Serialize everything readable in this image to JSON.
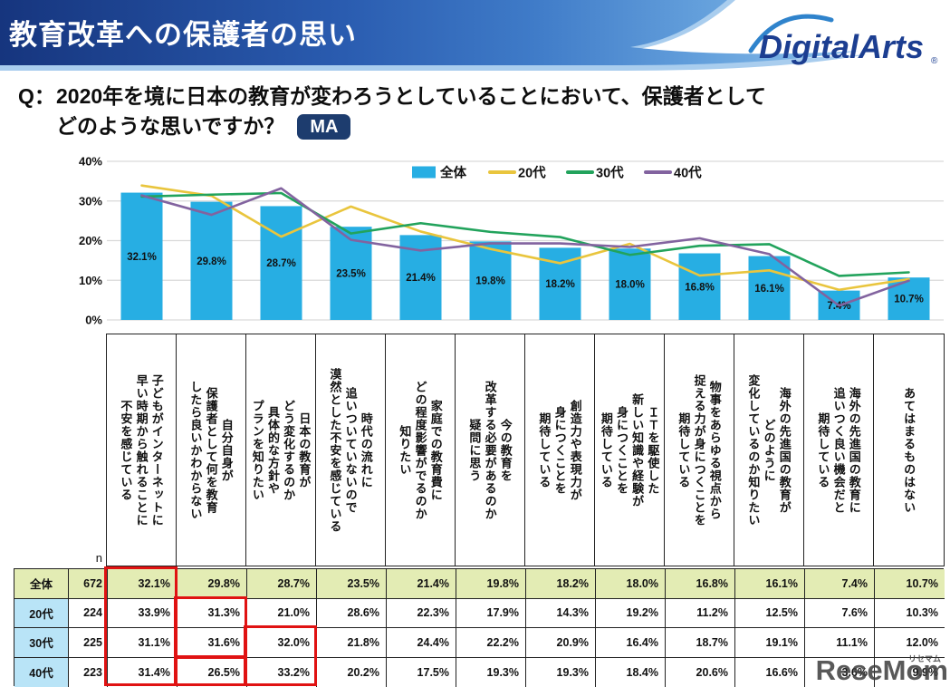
{
  "banner": {
    "title": "教育改革への保護者の思い",
    "logo_text": "DigitalArts",
    "logo_reg": "®"
  },
  "question": {
    "prefix": "Q：",
    "line1": "2020年を境に日本の教育が変わろうとしていることにおいて、保護者として",
    "line2": "どのような思いですか？",
    "badge": "MA"
  },
  "chart_data": {
    "type": "bar+line combo",
    "title": "",
    "xlabel": "",
    "ylabel": "",
    "ylim": [
      0,
      40
    ],
    "yticks": [
      "0%",
      "10%",
      "20%",
      "30%",
      "40%"
    ],
    "grid": true,
    "legend_position": "top",
    "colors": {
      "bar": "#27aee3",
      "line20": "#e9c53d",
      "line30": "#22a35c",
      "line40": "#82639f",
      "gridline": "#d9d9d9"
    },
    "categories": [
      "子どもがインターネットに早い時期から触れることに不安を感じている",
      "自分自身が保護者として何を教育したら良いかわからない",
      "日本の教育がどう変化するのか具体的な方針やプランを知りたい",
      "時代の流れに追いついていないので漠然とした不安を感じている",
      "家庭での教育費にどの程度影響がでるのか知りたい",
      "今の教育を改革する必要があるのか疑問に思う",
      "創造力や表現力が身につくことを期待している",
      "ＩＴを駆使した新しい知識や経験が身につくことを期待している",
      "物事をあらゆる視点から捉える力が身につくことを期待している",
      "海外の先進国の教育がどのように変化しているのか知りたい",
      "海外の先進国の教育に追いつく良い機会だと期待している",
      "あてはまるものはない"
    ],
    "category_lines": [
      [
        "子どもがインターネットに",
        "早い時期から触れることに",
        "不安を感じている"
      ],
      [
        "自分自身が",
        "保護者として何を教育",
        "したら良いかわからない"
      ],
      [
        "日本の教育が",
        "どう変化するのか",
        "具体的な方針や",
        "プランを知りたい"
      ],
      [
        "時代の流れに",
        "追いついていないので",
        "漠然とした不安を感じている"
      ],
      [
        "家庭での教育費に",
        "どの程度影響がでるのか",
        "知りたい"
      ],
      [
        "今の教育を",
        "改革する必要があるのか",
        "疑問に思う"
      ],
      [
        "創造力や表現力が",
        "身につくことを",
        "期待している"
      ],
      [
        "ＩＴを駆使した",
        "新しい知識や経験が",
        "身につくことを",
        "期待している"
      ],
      [
        "物事をあらゆる視点から",
        "捉える力が身につくことを",
        "期待している"
      ],
      [
        "海外の先進国の教育が",
        "どのように",
        "変化しているのか知りたい"
      ],
      [
        "海外の先進国の教育に",
        "追いつく良い機会だと",
        "期待している"
      ],
      [
        "あてはまるものはない"
      ]
    ],
    "series": [
      {
        "name": "全体",
        "type": "bar",
        "color": "#27aee3",
        "values": [
          32.1,
          29.8,
          28.7,
          23.5,
          21.4,
          19.8,
          18.2,
          18.0,
          16.8,
          16.1,
          7.4,
          10.7
        ]
      },
      {
        "name": "20代",
        "type": "line",
        "color": "#e9c53d",
        "values": [
          33.9,
          31.3,
          21.0,
          28.6,
          22.3,
          17.9,
          14.3,
          19.2,
          11.2,
          12.5,
          7.6,
          10.3
        ]
      },
      {
        "name": "30代",
        "type": "line",
        "color": "#22a35c",
        "values": [
          31.1,
          31.6,
          32.0,
          21.8,
          24.4,
          22.2,
          20.9,
          16.4,
          18.7,
          19.1,
          11.1,
          12.0
        ]
      },
      {
        "name": "40代",
        "type": "line",
        "color": "#82639f",
        "values": [
          31.4,
          26.5,
          33.2,
          20.2,
          17.5,
          19.3,
          19.3,
          18.4,
          20.6,
          16.6,
          3.6,
          9.9
        ]
      }
    ]
  },
  "table": {
    "n_label": "n",
    "rows": [
      {
        "header": "全体",
        "n": "672",
        "values": [
          32.1,
          29.8,
          28.7,
          23.5,
          21.4,
          19.8,
          18.2,
          18.0,
          16.8,
          16.1,
          7.4,
          10.7
        ]
      },
      {
        "header": "20代",
        "n": "224",
        "values": [
          33.9,
          31.3,
          21.0,
          28.6,
          22.3,
          17.9,
          14.3,
          19.2,
          11.2,
          12.5,
          7.6,
          10.3
        ]
      },
      {
        "header": "30代",
        "n": "225",
        "values": [
          31.1,
          31.6,
          32.0,
          21.8,
          24.4,
          22.2,
          20.9,
          16.4,
          18.7,
          19.1,
          11.1,
          12.0
        ]
      },
      {
        "header": "40代",
        "n": "223",
        "values": [
          31.4,
          26.5,
          33.2,
          20.2,
          17.5,
          19.3,
          19.3,
          18.4,
          20.6,
          16.6,
          3.6,
          9.9
        ]
      }
    ],
    "highlights": [
      {
        "col": 0,
        "row_start": 0,
        "row_end": 3
      },
      {
        "col": 1,
        "row_start": 1,
        "row_end": 2
      },
      {
        "col": 1,
        "row_start": 3,
        "row_end": 3
      },
      {
        "col": 2,
        "row_start": 2,
        "row_end": 3
      }
    ],
    "highlight_color": "#e01212"
  },
  "watermark": {
    "text": "ReseMom",
    "small": "リセマム"
  }
}
